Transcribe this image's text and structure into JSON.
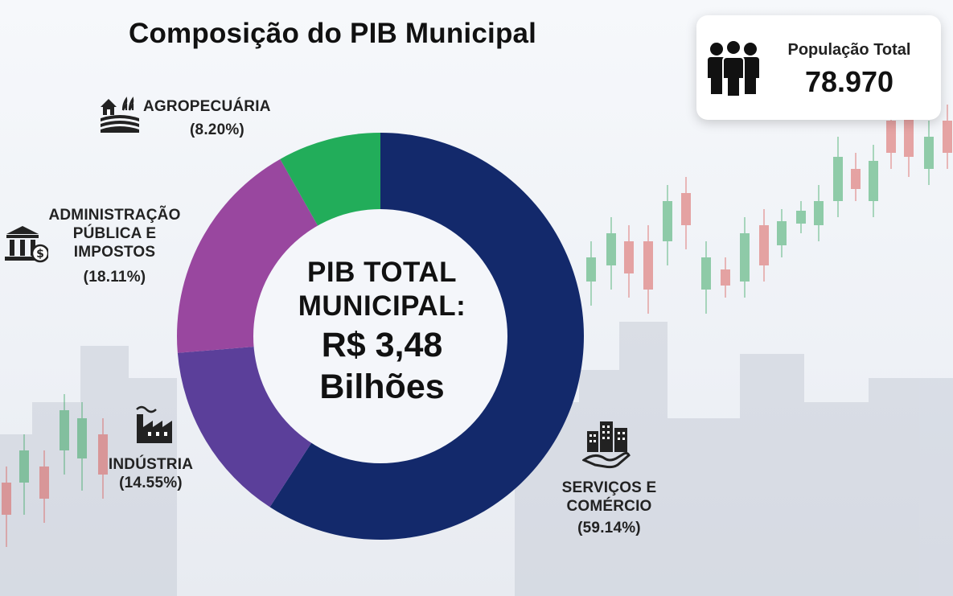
{
  "chart_data": {
    "type": "pie",
    "title": "Composição do PIB Municipal",
    "center_text": {
      "line1": "PIB TOTAL",
      "line2": "MUNICIPAL:",
      "line3": "R$ 3,48",
      "line4": "Bilhões"
    },
    "series": [
      {
        "name": "",
        "categories": [
          "SERVIÇOS E COMÉRCIO",
          "INDÚSTRIA",
          "ADMINISTRAÇÃO PÚBLICA E IMPOSTOS",
          "AGROPECUÁRIA"
        ],
        "values": [
          59.14,
          14.55,
          18.11,
          8.2
        ]
      }
    ],
    "slices": [
      {
        "label_lines": [
          "SERVIÇOS E",
          "COMÉRCIO"
        ],
        "percent_text": "(59.14%)",
        "value": 59.14,
        "color": "#13296b",
        "icon": "buildings-handshake-icon"
      },
      {
        "label_lines": [
          "INDÚSTRIA"
        ],
        "percent_text": "(14.55%)",
        "value": 14.55,
        "color": "#5b3f9a",
        "icon": "factory-icon"
      },
      {
        "label_lines": [
          "ADMINISTRAÇÃO",
          "PÚBLICA E",
          "IMPOSTOS"
        ],
        "percent_text": "(18.11%)",
        "value": 18.11,
        "color": "#99479f",
        "icon": "government-building-icon"
      },
      {
        "label_lines": [
          "AGROPECUÁRIA"
        ],
        "percent_text": "(8.20%)",
        "value": 8.2,
        "color": "#22ad5a",
        "icon": "farm-icon"
      }
    ],
    "start_angle": "top",
    "direction": "clockwise",
    "legend": "none"
  },
  "population_card": {
    "label": "População Total",
    "value": "78.970",
    "icon": "people-icon"
  },
  "colors": {
    "candle_green": "#2ea35a",
    "candle_red": "#d9534f"
  }
}
